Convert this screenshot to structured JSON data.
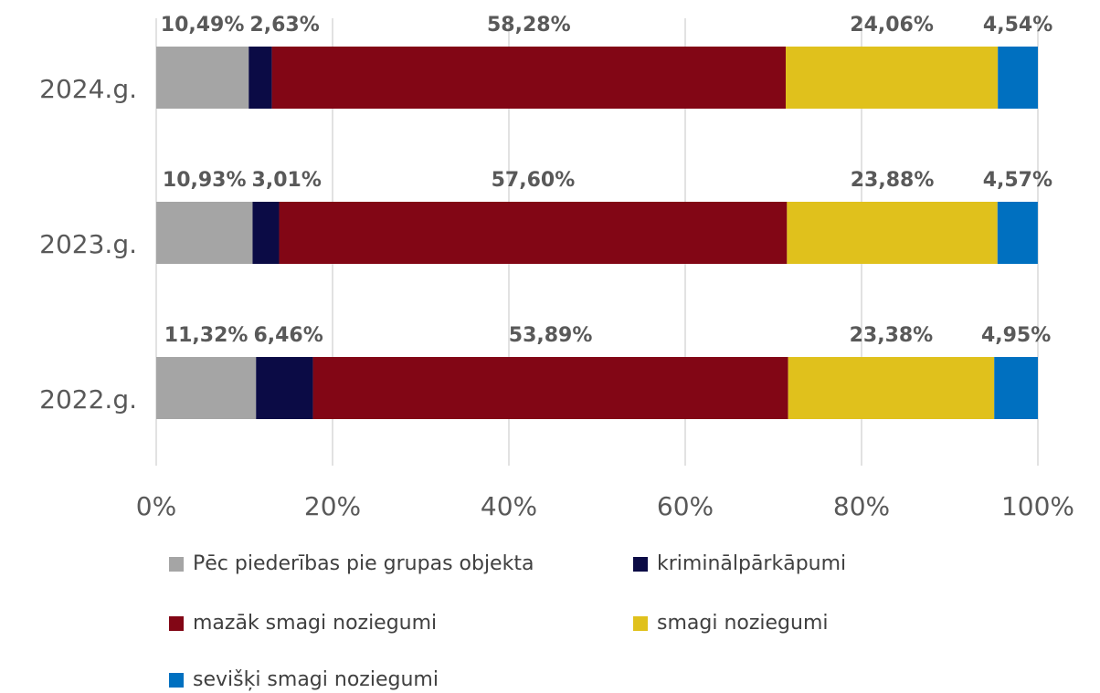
{
  "chart_data": {
    "type": "bar",
    "orientation": "horizontal",
    "stacked": true,
    "categories": [
      "2024.g.",
      "2023.g.",
      "2022.g."
    ],
    "series": [
      {
        "name": "Pēc piederības pie grupas objekta",
        "color": "#a5a5a5",
        "values": [
          10.49,
          10.93,
          11.32
        ],
        "value_labels": [
          "10,49%",
          "10,93%",
          "11,32%"
        ]
      },
      {
        "name": "kriminālpārkāpumi",
        "color": "#0b0b45",
        "values": [
          2.63,
          3.01,
          6.46
        ],
        "value_labels": [
          "2,63%",
          "3,01%",
          "6,46%"
        ]
      },
      {
        "name": "mazāk smagi noziegumi",
        "color": "#820615",
        "values": [
          58.28,
          57.6,
          53.89
        ],
        "value_labels": [
          "58,28%",
          "57,60%",
          "53,89%"
        ]
      },
      {
        "name": "smagi noziegumi",
        "color": "#e0c11c",
        "values": [
          24.06,
          23.88,
          23.38
        ],
        "value_labels": [
          "24,06%",
          "23,88%",
          "23,38%"
        ]
      },
      {
        "name": "sevišķi smagi noziegumi",
        "color": "#0070c0",
        "values": [
          4.54,
          4.57,
          4.95
        ],
        "value_labels": [
          "4,54%",
          "4,57%",
          "4,95%"
        ]
      }
    ],
    "xlim": [
      0,
      100
    ],
    "xticks": [
      {
        "value": 0,
        "label": "0%"
      },
      {
        "value": 20,
        "label": "20%"
      },
      {
        "value": 40,
        "label": "40%"
      },
      {
        "value": 60,
        "label": "60%"
      },
      {
        "value": 80,
        "label": "80%"
      },
      {
        "value": 100,
        "label": "100%"
      }
    ],
    "grid": true
  }
}
